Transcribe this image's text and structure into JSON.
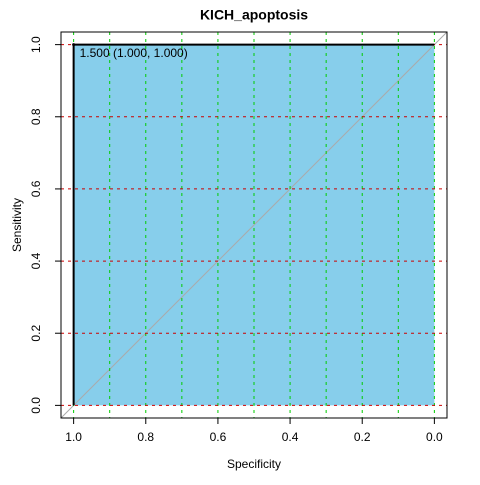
{
  "chart_data": {
    "type": "roc",
    "title": "KICH_apoptosis",
    "x_label": "Specificity",
    "y_label": "Sensitivity",
    "x": [
      1,
      1,
      0
    ],
    "series": [
      {
        "values": [
          0,
          1,
          1
        ],
        "color": "#000000",
        "fill": "#87ceeb"
      }
    ],
    "xlim": [
      1.035,
      -0.035
    ],
    "ylim": [
      -0.035,
      1.035
    ],
    "xticks": [
      {
        "value": 1,
        "label": "1.0"
      },
      {
        "value": 0.8,
        "label": "0.8"
      },
      {
        "value": 0.6,
        "label": "0.6"
      },
      {
        "value": 0.4,
        "label": "0.4"
      },
      {
        "value": 0.2,
        "label": "0.2"
      },
      {
        "value": 0,
        "label": "0.0"
      }
    ],
    "yticks": [
      {
        "value": 0,
        "label": "0.0"
      },
      {
        "value": 0.2,
        "label": "0.2"
      },
      {
        "value": 0.4,
        "label": "0.4"
      },
      {
        "value": 0.6,
        "label": "0.6"
      },
      {
        "value": 0.8,
        "label": "0.8"
      },
      {
        "value": 1,
        "label": "1.0"
      }
    ],
    "xgrid": [
      1,
      0.9,
      0.8,
      0.7,
      0.6,
      0.5,
      0.4,
      0.3,
      0.2,
      0.1,
      0
    ],
    "xgrid_color": "#00cc00",
    "ygrid": [
      0,
      0.2,
      0.4,
      0.6,
      0.8,
      1
    ],
    "ygrid_color": "#cc0000",
    "threshold": {
      "x": 1,
      "y": 1,
      "label": "1.500 (1.000, 1.000)"
    }
  }
}
